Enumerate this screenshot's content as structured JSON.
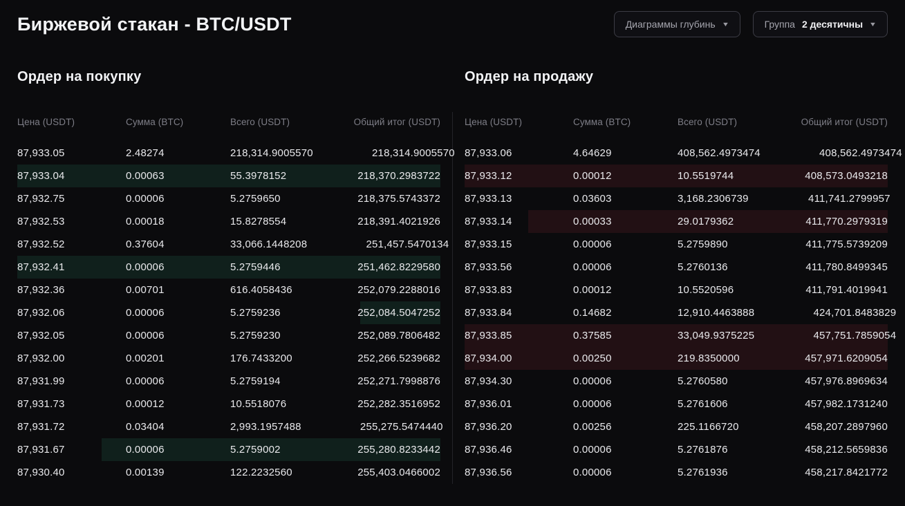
{
  "header": {
    "title": "Биржевой стакан - BTC/USDT",
    "depth_dropdown": {
      "label": "Диаграммы глубинь"
    },
    "group_dropdown": {
      "label": "Группа",
      "value": "2 десятичны"
    }
  },
  "columns": [
    "Цена (USDT)",
    "Сумма (BTC)",
    "Всего (USDT)",
    "Общий итог (USDT)"
  ],
  "colors": {
    "background": "#0b0b0d",
    "buy_depth": "rgba(61, 213, 152, 0.11)",
    "sell_depth": "rgba(246, 70, 93, 0.10)"
  },
  "buy_orders": {
    "title": "Ордер на покупку",
    "rows": [
      {
        "price": "87,933.05",
        "amount": "2.48274",
        "total": "218,314.9005570",
        "sum": "218,314.9005570",
        "bar": 0
      },
      {
        "price": "87,933.04",
        "amount": "0.00063",
        "total": "55.3978152",
        "sum": "218,370.2983722",
        "bar": 1
      },
      {
        "price": "87,932.75",
        "amount": "0.00006",
        "total": "5.2759650",
        "sum": "218,375.5743372",
        "bar": 0
      },
      {
        "price": "87,932.53",
        "amount": "0.00018",
        "total": "15.8278554",
        "sum": "218,391.4021926",
        "bar": 0
      },
      {
        "price": "87,932.52",
        "amount": "0.37604",
        "total": "33,066.1448208",
        "sum": "251,457.5470134",
        "bar": 0
      },
      {
        "price": "87,932.41",
        "amount": "0.00006",
        "total": "5.2759446",
        "sum": "251,462.8229580",
        "bar": 1
      },
      {
        "price": "87,932.36",
        "amount": "0.00701",
        "total": "616.4058436",
        "sum": "252,079.2288016",
        "bar": 0
      },
      {
        "price": "87,932.06",
        "amount": "0.00006",
        "total": "5.2759236",
        "sum": "252,084.5047252",
        "bar": 0.19
      },
      {
        "price": "87,932.05",
        "amount": "0.00006",
        "total": "5.2759230",
        "sum": "252,089.7806482",
        "bar": 0
      },
      {
        "price": "87,932.00",
        "amount": "0.00201",
        "total": "176.7433200",
        "sum": "252,266.5239682",
        "bar": 0
      },
      {
        "price": "87,931.99",
        "amount": "0.00006",
        "total": "5.2759194",
        "sum": "252,271.7998876",
        "bar": 0
      },
      {
        "price": "87,931.73",
        "amount": "0.00012",
        "total": "10.5518076",
        "sum": "252,282.3516952",
        "bar": 0
      },
      {
        "price": "87,931.72",
        "amount": "0.03404",
        "total": "2,993.1957488",
        "sum": "255,275.5474440",
        "bar": 0
      },
      {
        "price": "87,931.67",
        "amount": "0.00006",
        "total": "5.2759002",
        "sum": "255,280.8233442",
        "bar": 0.8
      },
      {
        "price": "87,930.40",
        "amount": "0.00139",
        "total": "122.2232560",
        "sum": "255,403.0466002",
        "bar": 0
      }
    ]
  },
  "sell_orders": {
    "title": "Ордер на продажу",
    "rows": [
      {
        "price": "87,933.06",
        "amount": "4.64629",
        "total": "408,562.4973474",
        "sum": "408,562.4973474",
        "bar": 0
      },
      {
        "price": "87,933.12",
        "amount": "0.00012",
        "total": "10.5519744",
        "sum": "408,573.0493218",
        "bar": 1
      },
      {
        "price": "87,933.13",
        "amount": "0.03603",
        "total": "3,168.2306739",
        "sum": "411,741.2799957",
        "bar": 0
      },
      {
        "price": "87,933.14",
        "amount": "0.00033",
        "total": "29.0179362",
        "sum": "411,770.2979319",
        "bar": 0.85
      },
      {
        "price": "87,933.15",
        "amount": "0.00006",
        "total": "5.2759890",
        "sum": "411,775.5739209",
        "bar": 0
      },
      {
        "price": "87,933.56",
        "amount": "0.00006",
        "total": "5.2760136",
        "sum": "411,780.8499345",
        "bar": 0
      },
      {
        "price": "87,933.83",
        "amount": "0.00012",
        "total": "10.5520596",
        "sum": "411,791.4019941",
        "bar": 0
      },
      {
        "price": "87,933.84",
        "amount": "0.14682",
        "total": "12,910.4463888",
        "sum": "424,701.8483829",
        "bar": 0
      },
      {
        "price": "87,933.85",
        "amount": "0.37585",
        "total": "33,049.9375225",
        "sum": "457,751.7859054",
        "bar": 1
      },
      {
        "price": "87,934.00",
        "amount": "0.00250",
        "total": "219.8350000",
        "sum": "457,971.6209054",
        "bar": 1
      },
      {
        "price": "87,934.30",
        "amount": "0.00006",
        "total": "5.2760580",
        "sum": "457,976.8969634",
        "bar": 0
      },
      {
        "price": "87,936.01",
        "amount": "0.00006",
        "total": "5.2761606",
        "sum": "457,982.1731240",
        "bar": 0
      },
      {
        "price": "87,936.20",
        "amount": "0.00256",
        "total": "225.1166720",
        "sum": "458,207.2897960",
        "bar": 0
      },
      {
        "price": "87,936.46",
        "amount": "0.00006",
        "total": "5.2761876",
        "sum": "458,212.5659836",
        "bar": 0
      },
      {
        "price": "87,936.56",
        "amount": "0.00006",
        "total": "5.2761936",
        "sum": "458,217.8421772",
        "bar": 0
      }
    ]
  }
}
